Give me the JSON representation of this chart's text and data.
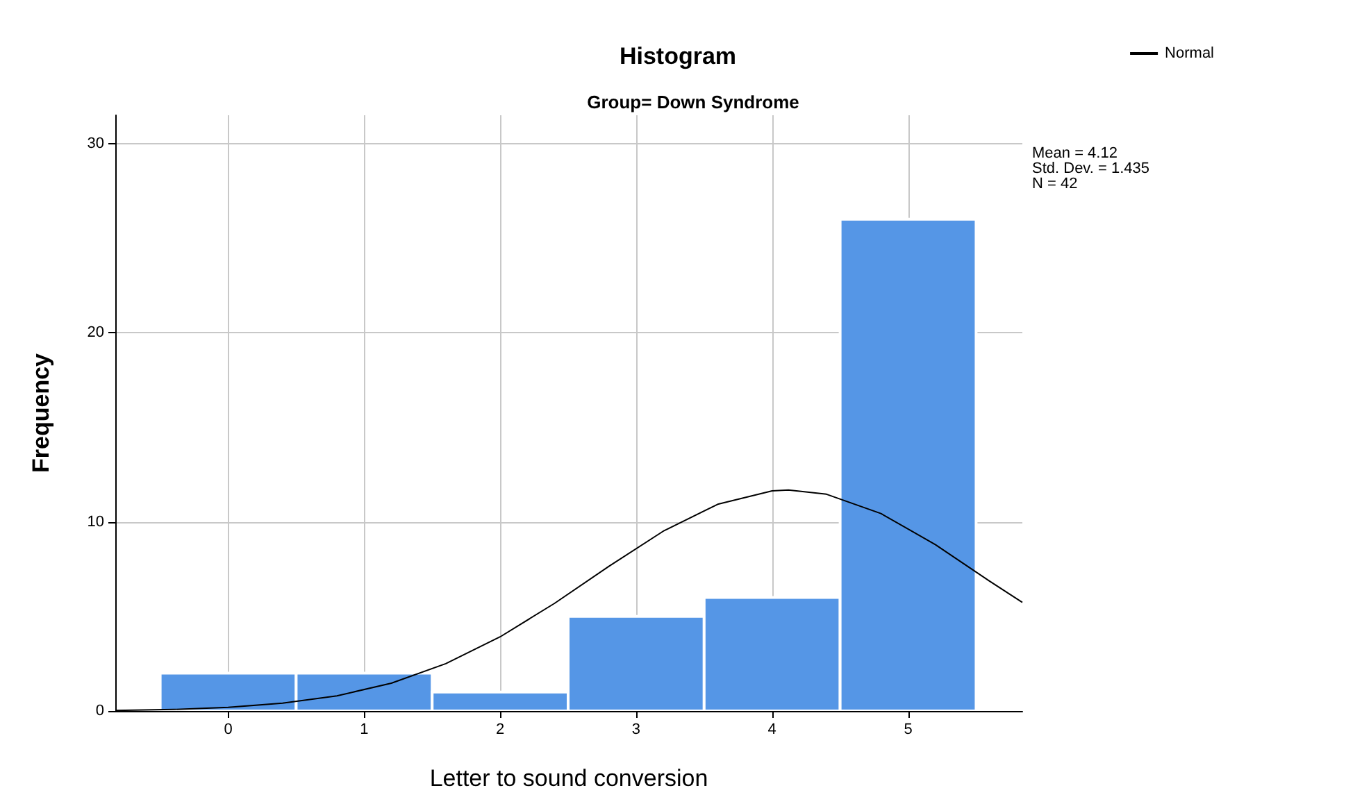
{
  "chart_data": {
    "type": "histogram",
    "title": "Histogram",
    "subtitle": "Group= Down Syndrome",
    "xlabel": "Letter to sound conversion",
    "ylabel": "Frequency",
    "bins": [
      -0.5,
      0.5,
      1.5,
      2.5,
      3.5,
      4.5,
      5.5
    ],
    "values": [
      2,
      2,
      1,
      5,
      6,
      26
    ],
    "color": "#5596e6",
    "series": [
      {
        "name": "Normal",
        "type": "line",
        "color": "#000000",
        "x": [
          -0.83,
          -0.4,
          0,
          0.4,
          0.8,
          1.2,
          1.6,
          2.0,
          2.4,
          2.8,
          3.2,
          3.6,
          4.0,
          4.12,
          4.4,
          4.8,
          5.2,
          5.6,
          5.84
        ],
        "values": [
          0.03,
          0.08,
          0.19,
          0.41,
          0.8,
          1.47,
          2.5,
          3.92,
          5.69,
          7.65,
          9.51,
          10.93,
          11.64,
          11.68,
          11.46,
          10.44,
          8.8,
          6.86,
          5.74
        ]
      }
    ],
    "annotations": [
      "Mean = 4.12\nStd. Dev. = 1.435\nN = 42"
    ],
    "xlim": [
      -0.83,
      5.84
    ],
    "xticks": [
      0,
      1,
      2,
      3,
      4,
      5
    ],
    "ylim": [
      0,
      31.5
    ],
    "yticks": [
      0,
      10,
      20,
      30
    ],
    "grid": true,
    "legend": "top right",
    "marker": "none",
    "line_style": "solid"
  }
}
